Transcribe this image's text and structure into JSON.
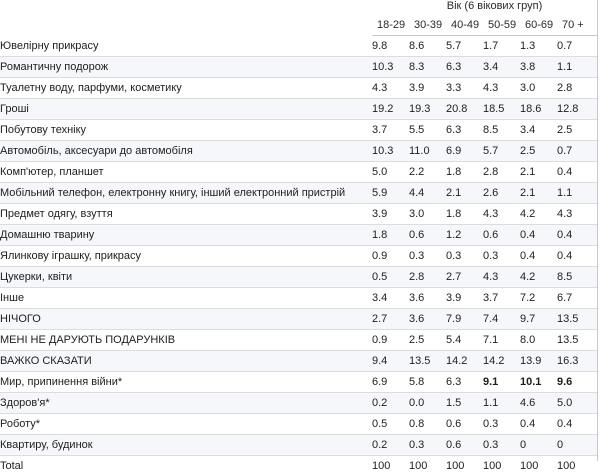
{
  "table": {
    "group_label": "Вік (6 вікових груп)",
    "columns": [
      "18-29",
      "30-39",
      "40-49",
      "50-59",
      "60-69",
      "70 +"
    ],
    "rows": [
      {
        "label": "Ювелірну прикрасу",
        "values": [
          "9.8",
          "8.6",
          "5.7",
          "1.7",
          "1.3",
          "0.7"
        ]
      },
      {
        "label": "Романтичну подорож",
        "values": [
          "10.3",
          "8.3",
          "6.3",
          "3.4",
          "3.8",
          "1.1"
        ]
      },
      {
        "label": "Туалетну воду, парфуми, косметику",
        "values": [
          "4.3",
          "3.9",
          "3.3",
          "4.3",
          "3.0",
          "2.8"
        ]
      },
      {
        "label": "Гроші",
        "values": [
          "19.2",
          "19.3",
          "20.8",
          "18.5",
          "18.6",
          "12.8"
        ]
      },
      {
        "label": "Побутову техніку",
        "values": [
          "3.7",
          "5.5",
          "6.3",
          "8.5",
          "3.4",
          "2.5"
        ]
      },
      {
        "label": "Автомобіль, аксесуари до автомобіля",
        "values": [
          "10.3",
          "11.0",
          "6.9",
          "5.7",
          "2.5",
          "0.7"
        ]
      },
      {
        "label": "Комп'ютер, планшет",
        "values": [
          "5.0",
          "2.2",
          "1.8",
          "2.8",
          "2.1",
          "0.4"
        ]
      },
      {
        "label": "Мобільний телефон, електронну книгу, інший електронний пристрій",
        "values": [
          "5.9",
          "4.4",
          "2.1",
          "2.6",
          "2.1",
          "1.1"
        ]
      },
      {
        "label": "Предмет одягу, взуття",
        "values": [
          "3.9",
          "3.0",
          "1.8",
          "4.3",
          "4.2",
          "4.3"
        ]
      },
      {
        "label": "Домашню тварину",
        "values": [
          "1.8",
          "0.6",
          "1.2",
          "0.6",
          "0.4",
          "0.4"
        ]
      },
      {
        "label": "Ялинкову іграшку, прикрасу",
        "values": [
          "0.9",
          "0.3",
          "0.3",
          "0.3",
          "0.4",
          "0.4"
        ]
      },
      {
        "label": "Цукерки, квіти",
        "values": [
          "0.5",
          "2.8",
          "2.7",
          "4.3",
          "4.2",
          "8.5"
        ]
      },
      {
        "label": "Інше",
        "values": [
          "3.4",
          "3.6",
          "3.9",
          "3.7",
          "7.2",
          "6.7"
        ]
      },
      {
        "label": "НІЧОГО",
        "values": [
          "2.7",
          "3.6",
          "7.9",
          "7.4",
          "9.7",
          "13.5"
        ]
      },
      {
        "label": "МЕНІ НЕ ДАРУЮТЬ ПОДАРУНКІВ",
        "values": [
          "0.9",
          "2.5",
          "5.4",
          "7.1",
          "8.0",
          "13.5"
        ]
      },
      {
        "label": "ВАЖКО СКАЗАТИ",
        "values": [
          "9.4",
          "13.5",
          "14.2",
          "14.2",
          "13.9",
          "16.3"
        ]
      },
      {
        "label": "Мир, припинення війни*",
        "values": [
          "6.9",
          "5.8",
          "6.3",
          "9.1",
          "10.1",
          "9.6"
        ],
        "bold": [
          false,
          false,
          false,
          true,
          true,
          true
        ]
      },
      {
        "label": "Здоров'я*",
        "values": [
          "0.2",
          "0.0",
          "1.5",
          "1.1",
          "4.6",
          "5.0"
        ]
      },
      {
        "label": "Роботу*",
        "values": [
          "0.5",
          "0.8",
          "0.6",
          "0.3",
          "0.4",
          "0.4"
        ]
      },
      {
        "label": "Квартиру, будинок",
        "values": [
          "0.2",
          "0.3",
          "0.6",
          "0.3",
          "0",
          "0"
        ]
      },
      {
        "label": "Total",
        "values": [
          "100",
          "100",
          "100",
          "100",
          "100",
          "100"
        ]
      }
    ]
  }
}
